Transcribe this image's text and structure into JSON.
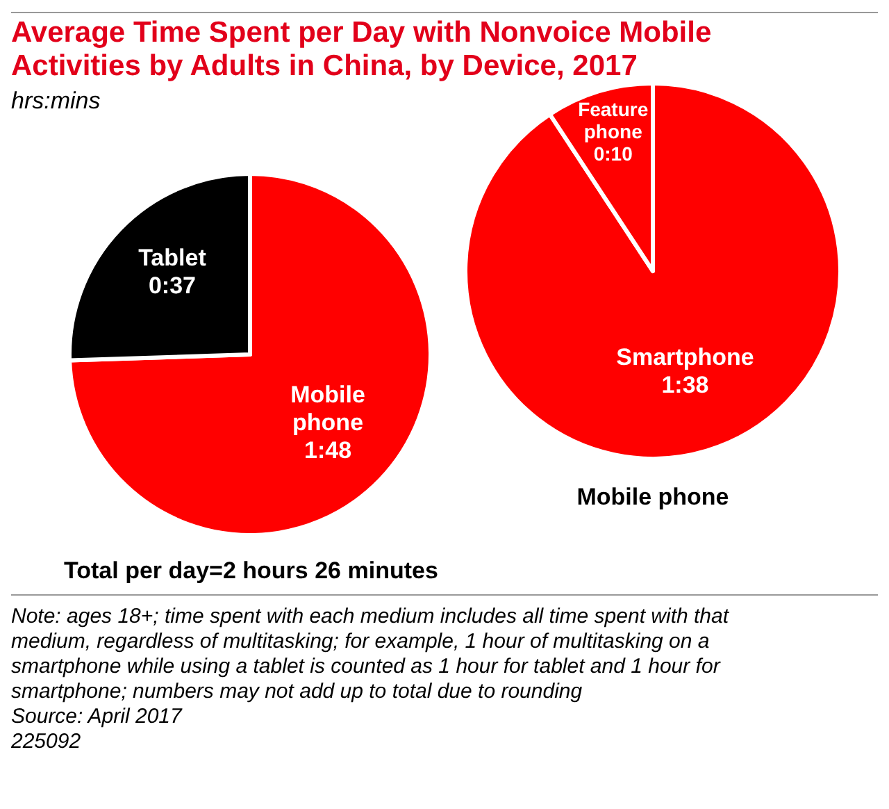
{
  "chart_data": [
    {
      "type": "pie",
      "title": "Average Time Spent per Day with Nonvoice Mobile Activities by Adults in China, by Device, 2017",
      "subtitle": "hrs:mins",
      "categories": [
        "Mobile phone",
        "Tablet"
      ],
      "values": [
        108,
        37
      ],
      "value_labels": [
        "1:48",
        "0:37"
      ],
      "colors": [
        "#ff0000",
        "#000000"
      ],
      "annotations": [
        "Total per day=2 hours 26 minutes",
        "Note: ages 18+; time spent with each medium includes all time spent with that medium, regardless of multitasking; for example, 1 hour of multitasking on a smartphone while using a tablet is counted as 1 hour for tablet and 1 hour for smartphone; numbers may not add up to total due to rounding",
        "Source: April 2017",
        "225092"
      ]
    },
    {
      "type": "pie",
      "title": "Mobile phone",
      "categories": [
        "Smartphone",
        "Feature phone"
      ],
      "values": [
        98,
        10
      ],
      "value_labels": [
        "1:38",
        "0:10"
      ],
      "colors": [
        "#ff0000",
        "#ff0000"
      ]
    }
  ]
}
